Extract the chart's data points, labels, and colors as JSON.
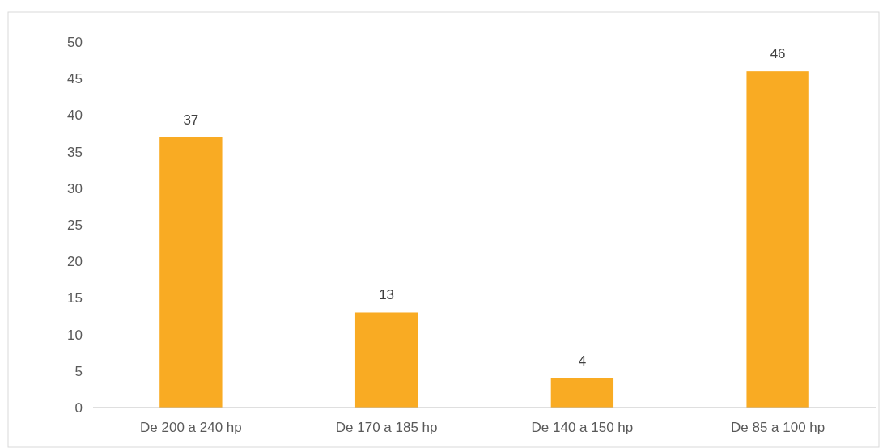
{
  "chart_data": {
    "type": "bar",
    "categories": [
      "De 200 a 240 hp",
      "De 170 a 185 hp",
      "De 140 a 150 hp",
      "De 85 a 100 hp"
    ],
    "values": [
      37,
      13,
      4,
      46
    ],
    "color": "#f9ab23",
    "ylim": [
      0,
      50
    ],
    "yticks": [
      0,
      5,
      10,
      15,
      20,
      25,
      30,
      35,
      40,
      45,
      50
    ],
    "grid": false,
    "data_labels": true
  }
}
